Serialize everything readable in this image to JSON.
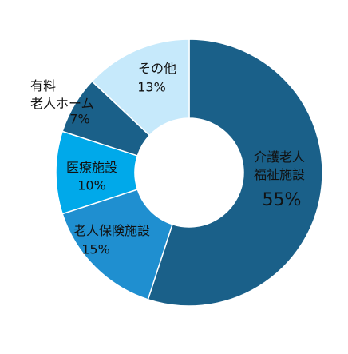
{
  "chart_data": {
    "type": "donut",
    "categories": [
      "介護老人\n福祉施設",
      "老人保険施設",
      "医療施設",
      "有料\n老人ホーム",
      "その他"
    ],
    "values": [
      55,
      15,
      10,
      7,
      13
    ],
    "value_labels": [
      "55%",
      "15%",
      "10%",
      "7%",
      "13%"
    ],
    "colors": [
      "#1a6089",
      "#1f8fd0",
      "#00a9ea",
      "#1a6089",
      "#c6e9fb"
    ]
  }
}
